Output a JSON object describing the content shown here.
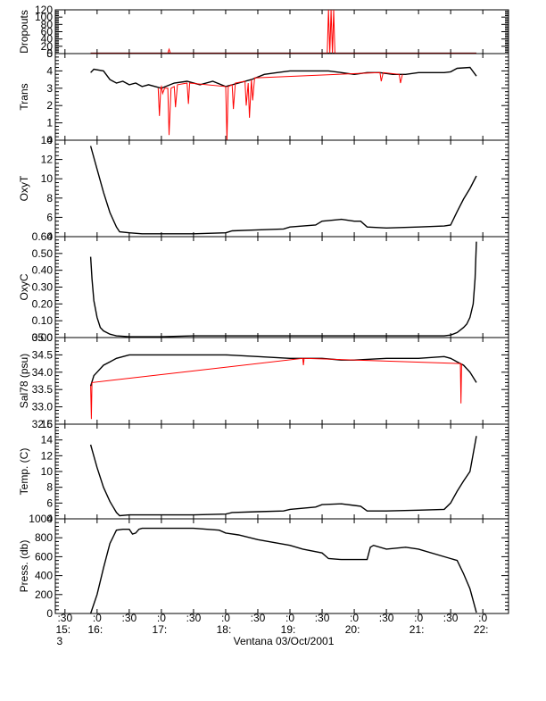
{
  "chart_data": [
    {
      "type": "line",
      "ylabel": "Dropouts",
      "ylim": [
        0,
        120
      ],
      "yticks": [
        0,
        20,
        40,
        60,
        80,
        100,
        120
      ],
      "ytick_labels": [
        "0",
        "20",
        "40",
        "60",
        "80",
        "100",
        "120"
      ],
      "series": [
        {
          "color": "#000000",
          "x": [
            15.9,
            16.5,
            17.0,
            17.5,
            18.0,
            18.5,
            19.0,
            19.5,
            20.0,
            20.5,
            21.0,
            21.5,
            21.9
          ],
          "y": [
            1,
            1,
            1,
            1,
            1,
            1,
            1,
            1,
            1,
            1,
            1,
            1,
            1
          ]
        },
        {
          "color": "#ff0000",
          "x": [
            15.9,
            17.1,
            17.12,
            17.14,
            18.5,
            19.58,
            19.6,
            19.62,
            19.64,
            19.66,
            19.68,
            19.7,
            21.9
          ],
          "y": [
            1,
            1,
            12,
            1,
            1,
            1,
            120,
            1,
            120,
            1,
            120,
            1,
            1
          ]
        }
      ]
    },
    {
      "type": "line",
      "ylabel": "Trans",
      "ylim": [
        0,
        5
      ],
      "yticks": [
        0,
        1,
        2,
        3,
        4,
        5
      ],
      "ytick_labels": [
        "0",
        "1",
        "2",
        "3",
        "4",
        "5"
      ],
      "series": [
        {
          "color": "#000000",
          "x": [
            15.9,
            15.95,
            16.1,
            16.2,
            16.3,
            16.4,
            16.5,
            16.6,
            16.7,
            16.8,
            17.0,
            17.2,
            17.4,
            17.6,
            17.8,
            18.0,
            18.2,
            18.4,
            18.6,
            18.8,
            19.0,
            19.2,
            19.4,
            19.6,
            19.8,
            20.0,
            20.2,
            20.4,
            20.6,
            20.8,
            21.0,
            21.2,
            21.4,
            21.5,
            21.6,
            21.8,
            21.9
          ],
          "y": [
            3.9,
            4.1,
            4.0,
            3.5,
            3.3,
            3.4,
            3.2,
            3.3,
            3.1,
            3.2,
            3.0,
            3.3,
            3.4,
            3.2,
            3.4,
            3.1,
            3.3,
            3.5,
            3.8,
            3.9,
            4.0,
            4.0,
            4.0,
            4.0,
            3.9,
            3.8,
            3.9,
            3.9,
            3.8,
            3.8,
            3.9,
            3.9,
            3.9,
            3.95,
            4.15,
            4.2,
            3.7
          ]
        },
        {
          "color": "#ff0000",
          "x": [
            16.95,
            16.97,
            16.99,
            17.0,
            17.02,
            17.05,
            17.1,
            17.12,
            17.15,
            17.2,
            17.22,
            17.25,
            17.4,
            17.42,
            17.44,
            18.0,
            18.02,
            18.04,
            18.1,
            18.12,
            18.15,
            18.3,
            18.32,
            18.35,
            18.37,
            18.4,
            18.42,
            18.45,
            20.4,
            20.42,
            20.45,
            20.7,
            20.72,
            20.75
          ],
          "y": [
            3.0,
            1.4,
            3.0,
            3.1,
            2.7,
            3.0,
            3.0,
            0.3,
            3.0,
            3.1,
            1.9,
            3.2,
            3.3,
            2.1,
            3.3,
            3.1,
            0.0,
            3.1,
            3.2,
            1.8,
            3.3,
            3.4,
            2.0,
            3.3,
            1.3,
            3.5,
            2.3,
            3.6,
            3.9,
            3.4,
            3.9,
            3.8,
            3.3,
            3.8
          ]
        }
      ]
    },
    {
      "type": "line",
      "ylabel": "OxyT",
      "ylim": [
        4,
        14
      ],
      "yticks": [
        4,
        6,
        8,
        10,
        12,
        14
      ],
      "ytick_labels": [
        "4",
        "6",
        "8",
        "10",
        "12",
        "14"
      ],
      "series": [
        {
          "color": "#000000",
          "x": [
            15.9,
            16.0,
            16.1,
            16.2,
            16.3,
            16.35,
            16.5,
            16.7,
            17.0,
            17.5,
            18.0,
            18.1,
            18.5,
            18.9,
            19.0,
            19.4,
            19.5,
            19.8,
            20.0,
            20.1,
            20.2,
            20.5,
            21.0,
            21.4,
            21.5,
            21.6,
            21.7,
            21.8,
            21.9
          ],
          "y": [
            13.4,
            11.0,
            8.6,
            6.5,
            5.0,
            4.5,
            4.4,
            4.3,
            4.3,
            4.3,
            4.4,
            4.6,
            4.7,
            4.8,
            5.0,
            5.2,
            5.6,
            5.8,
            5.6,
            5.6,
            5.0,
            4.9,
            5.0,
            5.1,
            5.2,
            6.6,
            7.9,
            9.0,
            10.3
          ]
        }
      ]
    },
    {
      "type": "line",
      "ylabel": "OxyC",
      "ylim": [
        0,
        0.6
      ],
      "yticks": [
        0,
        0.1,
        0.2,
        0.3,
        0.4,
        0.5,
        0.6
      ],
      "ytick_labels": [
        "0.00",
        "0.10",
        "0.20",
        "0.30",
        "0.40",
        "0.50",
        "0.60"
      ],
      "series": [
        {
          "color": "#000000",
          "x": [
            15.9,
            15.92,
            15.95,
            16.0,
            16.05,
            16.1,
            16.2,
            16.3,
            16.5,
            17.0,
            17.5,
            18.0,
            18.5,
            19.0,
            19.5,
            20.0,
            20.5,
            21.0,
            21.4,
            21.5,
            21.6,
            21.7,
            21.75,
            21.8,
            21.85,
            21.88,
            21.9
          ],
          "y": [
            0.48,
            0.35,
            0.22,
            0.12,
            0.06,
            0.04,
            0.02,
            0.01,
            0.005,
            0.005,
            0.01,
            0.01,
            0.01,
            0.01,
            0.01,
            0.01,
            0.01,
            0.01,
            0.01,
            0.015,
            0.03,
            0.06,
            0.08,
            0.12,
            0.2,
            0.35,
            0.57
          ]
        }
      ]
    },
    {
      "type": "line",
      "ylabel": "Sal78 (psu)",
      "ylim": [
        32.5,
        35.0
      ],
      "yticks": [
        32.5,
        33.0,
        33.5,
        34.0,
        34.5,
        35.0
      ],
      "ytick_labels": [
        "32.5",
        "33.0",
        "33.5",
        "34.0",
        "34.5",
        "35.0"
      ],
      "series": [
        {
          "color": "#000000",
          "x": [
            15.9,
            15.95,
            16.0,
            16.1,
            16.2,
            16.3,
            16.5,
            16.7,
            17.0,
            17.5,
            18.0,
            18.5,
            19.0,
            19.5,
            19.8,
            20.0,
            20.5,
            21.0,
            21.4,
            21.5,
            21.6,
            21.7,
            21.8,
            21.9
          ],
          "y": [
            33.6,
            33.9,
            34.0,
            34.2,
            34.3,
            34.4,
            34.5,
            34.5,
            34.5,
            34.5,
            34.5,
            34.45,
            34.4,
            34.4,
            34.35,
            34.35,
            34.4,
            34.4,
            34.45,
            34.4,
            34.3,
            34.2,
            34.0,
            33.7
          ]
        },
        {
          "color": "#ff0000",
          "x": [
            15.9,
            15.91,
            15.92,
            19.2,
            19.21,
            19.22,
            21.65,
            21.66,
            21.67
          ],
          "y": [
            33.6,
            32.65,
            33.7,
            34.4,
            34.2,
            34.4,
            34.25,
            33.1,
            34.25
          ]
        }
      ]
    },
    {
      "type": "line",
      "ylabel": "Temp. (C)",
      "ylim": [
        4,
        16
      ],
      "yticks": [
        4,
        6,
        8,
        10,
        12,
        14,
        16
      ],
      "ytick_labels": [
        "4",
        "6",
        "8",
        "10",
        "12",
        "14",
        "16"
      ],
      "series": [
        {
          "color": "#000000",
          "x": [
            15.9,
            16.0,
            16.1,
            16.2,
            16.3,
            16.35,
            16.5,
            16.7,
            17.0,
            17.5,
            18.0,
            18.1,
            18.5,
            18.9,
            19.0,
            19.4,
            19.5,
            19.8,
            20.0,
            20.1,
            20.2,
            20.5,
            21.0,
            21.4,
            21.5,
            21.6,
            21.7,
            21.8,
            21.9
          ],
          "y": [
            13.4,
            10.5,
            8.0,
            6.2,
            4.8,
            4.4,
            4.5,
            4.5,
            4.5,
            4.5,
            4.6,
            4.8,
            4.9,
            5.0,
            5.2,
            5.5,
            5.8,
            5.9,
            5.7,
            5.6,
            5.0,
            5.0,
            5.1,
            5.2,
            6.0,
            7.5,
            8.8,
            10.0,
            14.5
          ]
        }
      ]
    },
    {
      "type": "line",
      "ylabel": "Press. (db)",
      "ylim": [
        0,
        1000
      ],
      "yticks": [
        0,
        200,
        400,
        600,
        800,
        1000
      ],
      "ytick_labels": [
        "0",
        "200",
        "400",
        "600",
        "800",
        "1000"
      ],
      "series": [
        {
          "color": "#000000",
          "x": [
            15.9,
            16.0,
            16.1,
            16.2,
            16.3,
            16.4,
            16.5,
            16.55,
            16.6,
            16.65,
            16.7,
            17.0,
            17.5,
            17.9,
            18.0,
            18.2,
            18.5,
            19.0,
            19.2,
            19.5,
            19.6,
            19.8,
            20.0,
            20.2,
            20.25,
            20.3,
            20.5,
            20.8,
            21.0,
            21.5,
            21.6,
            21.7,
            21.8,
            21.9
          ],
          "y": [
            0,
            200,
            480,
            740,
            880,
            890,
            890,
            840,
            850,
            890,
            900,
            900,
            900,
            880,
            850,
            830,
            780,
            720,
            680,
            640,
            580,
            570,
            570,
            570,
            700,
            720,
            680,
            700,
            680,
            580,
            560,
            420,
            260,
            10
          ]
        }
      ]
    }
  ],
  "x_axis": {
    "xlim": [
      15.35,
      22.4
    ],
    "tick_values": [
      15.5,
      16.0,
      16.5,
      17.0,
      17.5,
      18.0,
      18.5,
      19.0,
      19.5,
      20.0,
      20.5,
      21.0,
      21.5,
      22.0
    ],
    "minute_labels": [
      ":30",
      ":0",
      ":30",
      ":0",
      ":30",
      ":0",
      ":30",
      ":0",
      ":30",
      ":0",
      ":30",
      ":0",
      ":30",
      ":0"
    ],
    "hour_labels": [
      "15:",
      "16:",
      "",
      "17:",
      "",
      "18:",
      "",
      "19:",
      "",
      "20:",
      "",
      "21:",
      "",
      "22:"
    ],
    "day_label": "3",
    "caption": "Ventana 03/Oct/2001"
  }
}
